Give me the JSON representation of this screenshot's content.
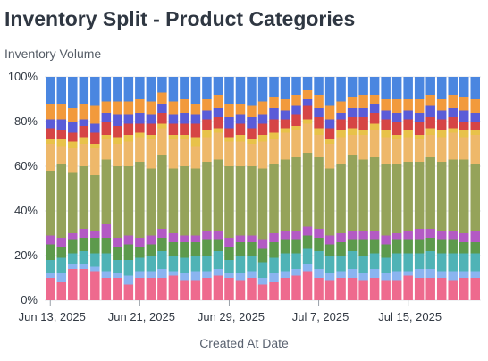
{
  "chart_data": {
    "type": "bar",
    "stacked": true,
    "normalized": true,
    "title": "Inventory Split - Product Categories",
    "ylabel": "Inventory Volume",
    "xlabel": "Created At Date",
    "ylim": [
      0,
      100
    ],
    "y_ticks": [
      "0%",
      "20%",
      "40%",
      "60%",
      "80%",
      "100%"
    ],
    "x_tick_labels": [
      {
        "index": 0,
        "label": "Jun 13, 2025"
      },
      {
        "index": 8,
        "label": "Jun 21, 2025"
      },
      {
        "index": 16,
        "label": "Jun 29, 2025"
      },
      {
        "index": 24,
        "label": "Jul 7, 2025"
      },
      {
        "index": 32,
        "label": "Jul 15, 2025"
      }
    ],
    "categories": [
      "Jun 13",
      "Jun 14",
      "Jun 15",
      "Jun 16",
      "Jun 17",
      "Jun 18",
      "Jun 19",
      "Jun 20",
      "Jun 21",
      "Jun 22",
      "Jun 23",
      "Jun 24",
      "Jun 25",
      "Jun 26",
      "Jun 27",
      "Jun 28",
      "Jun 29",
      "Jun 30",
      "Jul 1",
      "Jul 2",
      "Jul 3",
      "Jul 4",
      "Jul 5",
      "Jul 6",
      "Jul 7",
      "Jul 8",
      "Jul 9",
      "Jul 10",
      "Jul 11",
      "Jul 12",
      "Jul 13",
      "Jul 14",
      "Jul 15",
      "Jul 16",
      "Jul 17",
      "Jul 18",
      "Jul 19",
      "Jul 20",
      "Jul 21"
    ],
    "series": [
      {
        "color": "#ee6a8e",
        "values": [
          10,
          8,
          14,
          14,
          13,
          10,
          10,
          7,
          10,
          10,
          10,
          11,
          9,
          9,
          10,
          11,
          10,
          9,
          10,
          7,
          8,
          10,
          11,
          13,
          10,
          9,
          10,
          10,
          9,
          10,
          9,
          9,
          11,
          10,
          10,
          10,
          9,
          10,
          10
        ]
      },
      {
        "color": "#8ab4f0",
        "values": [
          2,
          4,
          2,
          2,
          2,
          3,
          2,
          4,
          3,
          3,
          4,
          2,
          3,
          4,
          3,
          3,
          2,
          3,
          3,
          3,
          4,
          3,
          3,
          3,
          4,
          3,
          3,
          4,
          3,
          4,
          3,
          4,
          2,
          4,
          4,
          3,
          4,
          3,
          3
        ]
      },
      {
        "color": "#4fb3b6",
        "values": [
          6,
          7,
          5,
          6,
          6,
          8,
          6,
          7,
          6,
          7,
          8,
          7,
          7,
          7,
          7,
          8,
          6,
          8,
          7,
          7,
          7,
          8,
          7,
          7,
          8,
          8,
          7,
          8,
          8,
          7,
          7,
          8,
          8,
          7,
          8,
          8,
          8,
          8,
          8
        ]
      },
      {
        "color": "#5d9a4c",
        "values": [
          7,
          5,
          6,
          6,
          7,
          7,
          6,
          7,
          5,
          5,
          6,
          6,
          7,
          6,
          7,
          5,
          6,
          6,
          6,
          6,
          7,
          6,
          6,
          6,
          6,
          5,
          6,
          5,
          7,
          6,
          6,
          6,
          6,
          6,
          6,
          6,
          6,
          5,
          5
        ]
      },
      {
        "color": "#b35ac4",
        "values": [
          4,
          4,
          3,
          4,
          3,
          6,
          4,
          4,
          4,
          4,
          4,
          4,
          3,
          3,
          4,
          4,
          4,
          3,
          3,
          4,
          4,
          4,
          4,
          4,
          4,
          4,
          4,
          4,
          4,
          4,
          4,
          3,
          4,
          5,
          4,
          4,
          4,
          4,
          5
        ]
      },
      {
        "color": "#95a35a",
        "values": [
          29,
          33,
          27,
          28,
          25,
          29,
          32,
          31,
          34,
          30,
          33,
          29,
          31,
          30,
          31,
          32,
          32,
          31,
          31,
          32,
          31,
          32,
          33,
          33,
          32,
          30,
          31,
          34,
          32,
          33,
          32,
          31,
          31,
          30,
          32,
          31,
          32,
          33,
          30
        ]
      },
      {
        "color": "#eeb86a",
        "values": [
          12,
          8,
          11,
          10,
          12,
          9,
          10,
          11,
          11,
          13,
          12,
          13,
          12,
          10,
          11,
          12,
          11,
          11,
          10,
          12,
          11,
          12,
          12,
          13,
          10,
          11,
          12,
          9,
          11,
          12,
          12,
          11,
          11,
          10,
          10,
          11,
          12,
          10,
          13
        ]
      },
      {
        "color": "#e8c24a",
        "values": [
          2,
          3,
          3,
          3,
          2,
          2,
          3,
          3,
          2,
          2,
          2,
          2,
          2,
          4,
          3,
          2,
          2,
          3,
          2,
          3,
          3,
          2,
          2,
          2,
          3,
          2,
          3,
          3,
          2,
          3,
          3,
          2,
          3,
          2,
          3,
          3,
          2,
          3,
          2
        ]
      },
      {
        "color": "#d64545",
        "values": [
          5,
          4,
          4,
          5,
          5,
          6,
          5,
          5,
          4,
          5,
          5,
          5,
          5,
          6,
          5,
          5,
          4,
          5,
          5,
          5,
          6,
          4,
          5,
          6,
          5,
          5,
          5,
          5,
          6,
          5,
          5,
          6,
          5,
          6,
          5,
          5,
          5,
          4,
          4
        ]
      },
      {
        "color": "#5a5cd8",
        "values": [
          4,
          5,
          5,
          3,
          4,
          4,
          5,
          4,
          5,
          4,
          4,
          4,
          5,
          4,
          4,
          4,
          5,
          4,
          5,
          4,
          5,
          4,
          4,
          3,
          4,
          4,
          3,
          4,
          4,
          4,
          4,
          4,
          4,
          4,
          5,
          4,
          4,
          5,
          4
        ]
      },
      {
        "color": "#f29a3c",
        "values": [
          7,
          7,
          6,
          7,
          8,
          5,
          6,
          6,
          6,
          6,
          5,
          6,
          6,
          5,
          5,
          6,
          6,
          5,
          5,
          6,
          5,
          5,
          5,
          4,
          6,
          6,
          5,
          5,
          6,
          4,
          5,
          6,
          5,
          6,
          5,
          5,
          6,
          6,
          6
        ]
      },
      {
        "color": "#4a86e0",
        "values": [
          12,
          12,
          14,
          12,
          13,
          11,
          11,
          11,
          10,
          11,
          7,
          11,
          10,
          12,
          10,
          8,
          12,
          12,
          13,
          11,
          9,
          10,
          8,
          6,
          8,
          13,
          11,
          9,
          8,
          8,
          10,
          10,
          10,
          10,
          8,
          10,
          8,
          9,
          10
        ]
      }
    ]
  }
}
